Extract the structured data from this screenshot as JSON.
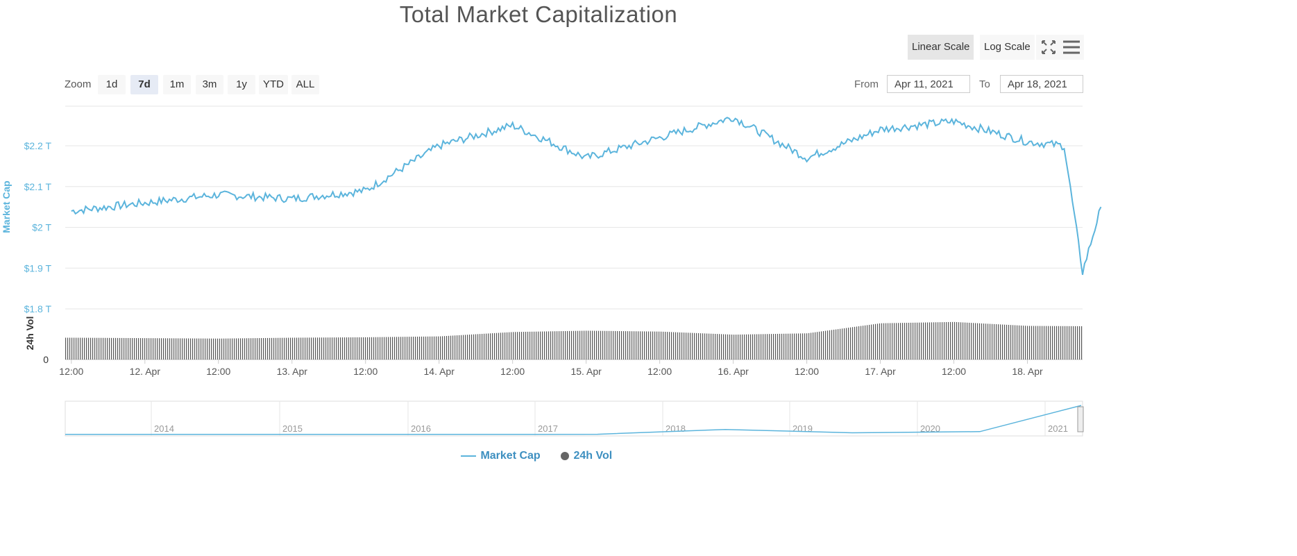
{
  "header": {
    "title": "Total Market Capitalization"
  },
  "toolbar": {
    "linear_label": "Linear Scale",
    "log_label": "Log Scale",
    "fullscreen_icon": "fullscreen-icon",
    "menu_icon": "hamburger-menu-icon"
  },
  "zoom": {
    "label": "Zoom",
    "buttons": [
      "1d",
      "7d",
      "1m",
      "3m",
      "1y",
      "YTD",
      "ALL"
    ],
    "active": "7d"
  },
  "range": {
    "from_label": "From",
    "from_value": "Apr 11, 2021",
    "to_label": "To",
    "to_value": "Apr 18, 2021"
  },
  "legend": {
    "marketcap_label": "Market Cap",
    "volume_label": "24h Vol"
  },
  "colors": {
    "marketcap": "#5bb4dc",
    "volume": "#555555",
    "grid": "#e6e6e6",
    "axis_text": "#5bb4dc"
  },
  "chart_data": {
    "type": "line",
    "title": "Total Market Capitalization",
    "ylabel": "Market Cap",
    "y_unit": "T",
    "ylim": [
      1.8,
      2.3
    ],
    "yticks": [
      "$1.8 T",
      "$1.9 T",
      "$2 T",
      "$2.1 T",
      "$2.2 T"
    ],
    "xticks": [
      "12:00",
      "12. Apr",
      "12:00",
      "13. Apr",
      "12:00",
      "14. Apr",
      "12:00",
      "15. Apr",
      "12:00",
      "16. Apr",
      "12:00",
      "17. Apr",
      "12:00",
      "18. Apr"
    ],
    "series": [
      {
        "name": "Market Cap",
        "x": [
          "Apr 11 12:00",
          "Apr 12 00:00",
          "Apr 12 12:00",
          "Apr 13 00:00",
          "Apr 13 12:00",
          "Apr 14 00:00",
          "Apr 14 12:00",
          "Apr 15 00:00",
          "Apr 15 12:00",
          "Apr 16 00:00",
          "Apr 16 12:00",
          "Apr 17 00:00",
          "Apr 17 12:00",
          "Apr 18 00:00",
          "Apr 18 06:00",
          "Apr 18 09:00",
          "Apr 18 12:00"
        ],
        "values": [
          2.04,
          2.06,
          2.08,
          2.07,
          2.09,
          2.2,
          2.25,
          2.17,
          2.22,
          2.27,
          2.17,
          2.24,
          2.26,
          2.21,
          2.2,
          1.89,
          2.05
        ]
      },
      {
        "name": "24h Vol",
        "x": [
          "Apr 11 12:00",
          "Apr 12 00:00",
          "Apr 12 12:00",
          "Apr 13 00:00",
          "Apr 13 12:00",
          "Apr 14 00:00",
          "Apr 14 12:00",
          "Apr 15 00:00",
          "Apr 15 12:00",
          "Apr 16 00:00",
          "Apr 16 12:00",
          "Apr 17 00:00",
          "Apr 17 12:00",
          "Apr 18 00:00",
          "Apr 18 12:00"
        ],
        "values": [
          0.5,
          0.49,
          0.48,
          0.5,
          0.51,
          0.53,
          0.63,
          0.66,
          0.64,
          0.57,
          0.6,
          0.83,
          0.86,
          0.77,
          0.76
        ],
        "y_unit": "relative"
      }
    ],
    "volume_axis": {
      "label": "24h Vol",
      "zero_label": "0"
    },
    "navigator": {
      "years": [
        "2014",
        "2015",
        "2016",
        "2017",
        "2018",
        "2019",
        "2020",
        "2021"
      ],
      "values": [
        0.01,
        0.01,
        0.01,
        0.02,
        0.35,
        0.12,
        0.2,
        2.0
      ]
    },
    "legend_position": "bottom-center",
    "grid": true
  }
}
